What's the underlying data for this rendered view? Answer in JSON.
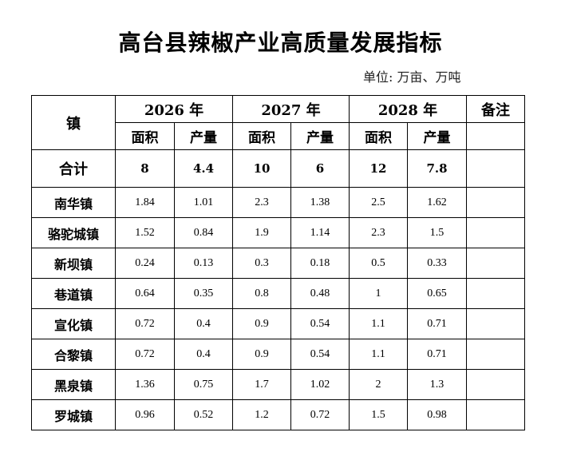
{
  "title": "高台县辣椒产业高质量发展指标",
  "unit": "单位:  万亩、万吨",
  "header": {
    "town": "镇",
    "years": [
      "2026 年",
      "2027 年",
      "2028 年"
    ],
    "remark": "备注",
    "area": "面积",
    "output": "产量"
  },
  "total": {
    "label": "合计",
    "values": [
      "8",
      "4.4",
      "10",
      "6",
      "12",
      "7.8"
    ],
    "remark": ""
  },
  "rows": [
    {
      "town": "南华镇",
      "values": [
        "1.84",
        "1.01",
        "2.3",
        "1.38",
        "2.5",
        "1.62"
      ],
      "remark": ""
    },
    {
      "town": "骆驼城镇",
      "values": [
        "1.52",
        "0.84",
        "1.9",
        "1.14",
        "2.3",
        "1.5"
      ],
      "remark": ""
    },
    {
      "town": "新坝镇",
      "values": [
        "0.24",
        "0.13",
        "0.3",
        "0.18",
        "0.5",
        "0.33"
      ],
      "remark": ""
    },
    {
      "town": "巷道镇",
      "values": [
        "0.64",
        "0.35",
        "0.8",
        "0.48",
        "1",
        "0.65"
      ],
      "remark": ""
    },
    {
      "town": "宣化镇",
      "values": [
        "0.72",
        "0.4",
        "0.9",
        "0.54",
        "1.1",
        "0.71"
      ],
      "remark": ""
    },
    {
      "town": "合黎镇",
      "values": [
        "0.72",
        "0.4",
        "0.9",
        "0.54",
        "1.1",
        "0.71"
      ],
      "remark": ""
    },
    {
      "town": "黑泉镇",
      "values": [
        "1.36",
        "0.75",
        "1.7",
        "1.02",
        "2",
        "1.3"
      ],
      "remark": ""
    },
    {
      "town": "罗城镇",
      "values": [
        "0.96",
        "0.52",
        "1.2",
        "0.72",
        "1.5",
        "0.98"
      ],
      "remark": ""
    }
  ]
}
